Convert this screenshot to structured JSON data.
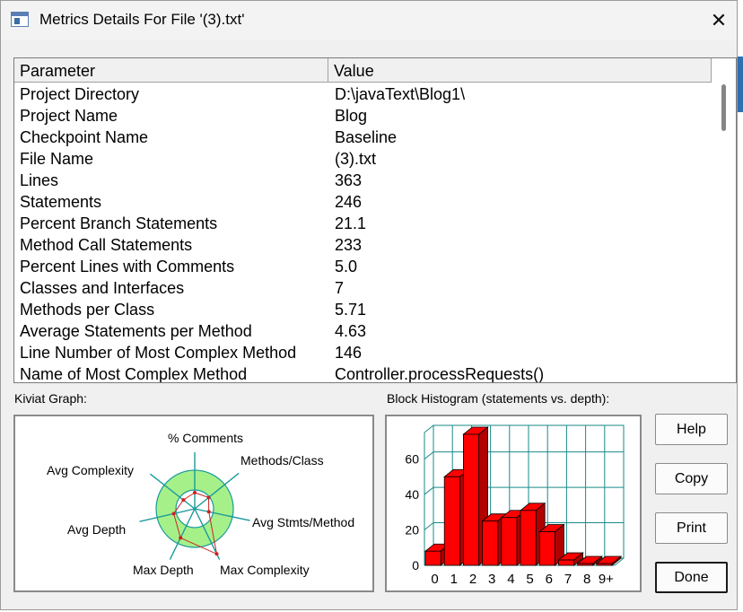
{
  "window": {
    "title": "Metrics Details For File '(3).txt'",
    "close_symbol": "✕"
  },
  "grid": {
    "headers": {
      "parameter": "Parameter",
      "value": "Value"
    },
    "rows": [
      {
        "parameter": "Project Directory",
        "value": "D:\\javaText\\Blog1\\"
      },
      {
        "parameter": "Project Name",
        "value": "Blog"
      },
      {
        "parameter": "Checkpoint Name",
        "value": "Baseline"
      },
      {
        "parameter": "File Name",
        "value": "(3).txt"
      },
      {
        "parameter": "Lines",
        "value": "363"
      },
      {
        "parameter": "Statements",
        "value": "246"
      },
      {
        "parameter": "Percent Branch Statements",
        "value": "21.1"
      },
      {
        "parameter": "Method Call Statements",
        "value": "233"
      },
      {
        "parameter": "Percent Lines with Comments",
        "value": "5.0"
      },
      {
        "parameter": "Classes and Interfaces",
        "value": "7"
      },
      {
        "parameter": "Methods per Class",
        "value": "5.71"
      },
      {
        "parameter": "Average Statements per Method",
        "value": "4.63"
      },
      {
        "parameter": "Line Number of Most Complex Method",
        "value": "146"
      },
      {
        "parameter": "Name of Most Complex Method",
        "value": "Controller.processRequests()"
      }
    ]
  },
  "kiviat": {
    "label": "Kiviat Graph:",
    "axes": [
      "% Comments",
      "Methods/Class",
      "Avg Stmts/Method",
      "Max Complexity",
      "Max Depth",
      "Avg Depth",
      "Avg Complexity"
    ],
    "colors": {
      "ring": "#a6f08a",
      "axis": "#1a9a9a",
      "polygon": "#cc2222"
    }
  },
  "histogram": {
    "label": "Block Histogram (statements vs. depth):",
    "colors": {
      "bar": "#ff0000",
      "bar_side": "#b00000",
      "grid": "#1a8a8a"
    }
  },
  "chart_data": {
    "type": "bar",
    "categories": [
      "0",
      "1",
      "2",
      "3",
      "4",
      "5",
      "6",
      "7",
      "8",
      "9+"
    ],
    "values": [
      8,
      50,
      74,
      25,
      27,
      31,
      19,
      3,
      1,
      1
    ],
    "ylim": [
      0,
      75
    ],
    "yticks": [
      "0",
      "20",
      "40",
      "60"
    ],
    "grid": true
  },
  "buttons": {
    "help": "Help",
    "copy": "Copy",
    "print": "Print",
    "done": "Done"
  }
}
